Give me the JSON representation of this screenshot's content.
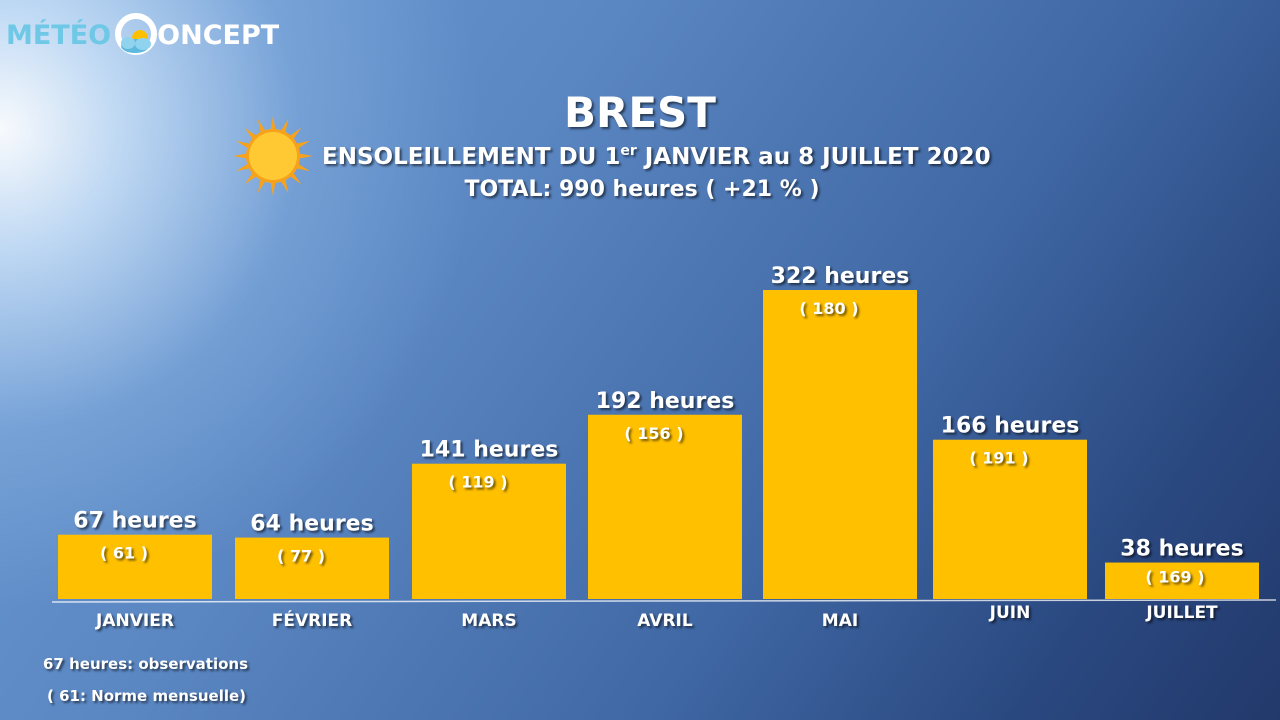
{
  "logo": {
    "part1": "MÉTÉO",
    "part2": "ONCEPT"
  },
  "header": {
    "title": "BREST",
    "subtitle_pre": "ENSOLEILLEMENT DU 1",
    "subtitle_sup": "er",
    "subtitle_post": " JANVIER au 8 JUILLET 2020",
    "total": "TOTAL: 990 heures ( +21 % )"
  },
  "legend": {
    "line1": "67 heures: observations",
    "line2": "( 61: Norme mensuelle)"
  },
  "colors": {
    "bar": "#FFC000",
    "text": "#FFFFFF",
    "sun_outer": "#F7A21B",
    "sun_inner": "#FFC933"
  },
  "icons": {
    "sun": "sun-icon",
    "logo": "cloud-sun-logo-icon"
  },
  "chart_data": {
    "type": "bar",
    "title": "BREST",
    "subtitle": "ENSOLEILLEMENT DU 1er JANVIER au 8 JUILLET 2020",
    "categories": [
      "JANVIER",
      "FÉVRIER",
      "MARS",
      "AVRIL",
      "MAI",
      "JUIN",
      "JUILLET"
    ],
    "values": [
      67,
      64,
      141,
      192,
      322,
      166,
      38
    ],
    "normals": [
      61,
      77,
      119,
      156,
      180,
      191,
      169
    ],
    "value_labels": [
      "67 heures",
      "64 heures",
      "141 heures",
      "192 heures",
      "322 heures",
      "166 heures",
      "38 heures"
    ],
    "normal_labels": [
      "( 61 )",
      "( 77 )",
      "( 119 )",
      "( 156 )",
      "( 180 )",
      "( 191 )",
      "( 169 )"
    ],
    "unit": "heures",
    "ylim": [
      0,
      322
    ],
    "grid": false
  }
}
